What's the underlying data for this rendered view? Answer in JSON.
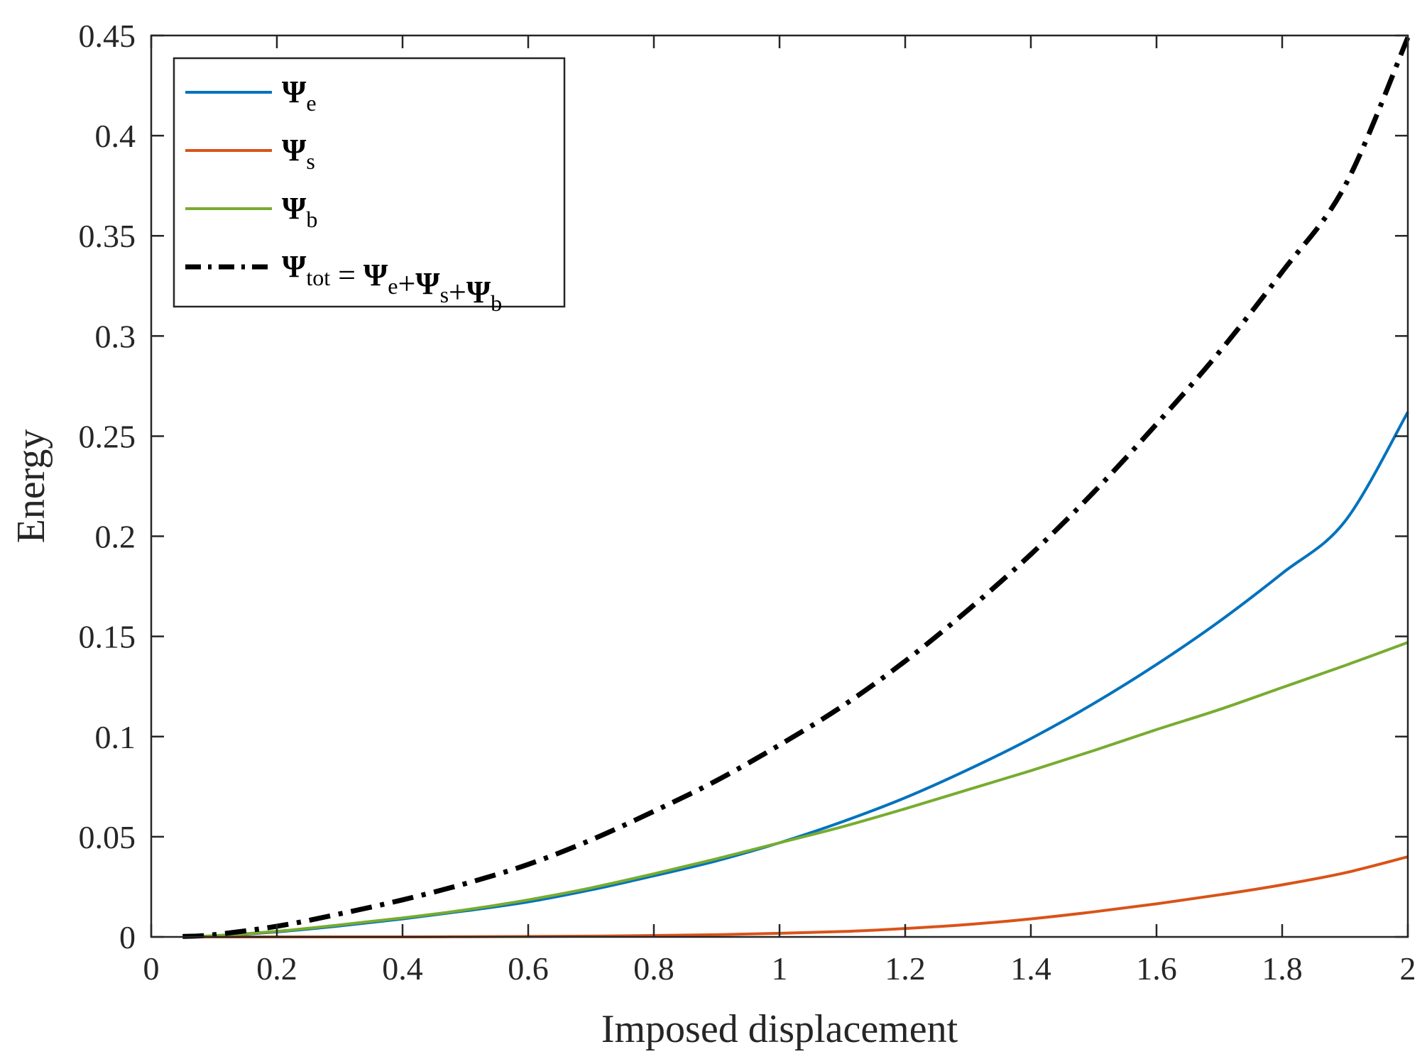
{
  "chart_data": {
    "type": "line",
    "title": "",
    "xlabel": "Imposed displacement",
    "ylabel": "Energy",
    "xlim": [
      0,
      2
    ],
    "ylim": [
      0,
      0.45
    ],
    "xticks": [
      0,
      0.2,
      0.4,
      0.6,
      0.8,
      1,
      1.2,
      1.4,
      1.6,
      1.8,
      2
    ],
    "xtick_labels": [
      "0",
      "0.2",
      "0.4",
      "0.6",
      "0.8",
      "1",
      "1.2",
      "1.4",
      "1.6",
      "1.8",
      "2"
    ],
    "yticks": [
      0,
      0.05,
      0.1,
      0.15,
      0.2,
      0.25,
      0.3,
      0.35,
      0.4,
      0.45
    ],
    "ytick_labels": [
      "0",
      "0.05",
      "0.1",
      "0.15",
      "0.2",
      "0.25",
      "0.3",
      "0.35",
      "0.4",
      "0.45"
    ],
    "grid": false,
    "legend_position": "top-left",
    "x": [
      0.05,
      0.1,
      0.2,
      0.3,
      0.4,
      0.5,
      0.6,
      0.7,
      0.8,
      0.9,
      1.0,
      1.1,
      1.2,
      1.3,
      1.4,
      1.5,
      1.6,
      1.7,
      1.8,
      1.9,
      2.0
    ],
    "series": [
      {
        "name": "Ψe",
        "legend_symbol": "Ψ",
        "legend_subscript": "e",
        "color": "#0072BD",
        "style": "solid",
        "values": [
          0.0001,
          0.0005,
          0.0025,
          0.0055,
          0.009,
          0.013,
          0.0175,
          0.0235,
          0.0305,
          0.038,
          0.047,
          0.0575,
          0.0695,
          0.0835,
          0.099,
          0.1165,
          0.136,
          0.1575,
          0.1815,
          0.2075,
          0.262
        ]
      },
      {
        "name": "Ψs",
        "legend_symbol": "Ψ",
        "legend_subscript": "s",
        "color": "#D95319",
        "style": "solid",
        "values": [
          0,
          0,
          0,
          0,
          0,
          0.0001,
          0.0002,
          0.0004,
          0.0007,
          0.0011,
          0.0018,
          0.0027,
          0.0042,
          0.0062,
          0.009,
          0.0125,
          0.0165,
          0.021,
          0.026,
          0.032,
          0.04
        ]
      },
      {
        "name": "Ψb",
        "legend_symbol": "Ψ",
        "legend_subscript": "b",
        "color": "#77AC30",
        "style": "solid",
        "values": [
          0.0001,
          0.0006,
          0.0028,
          0.006,
          0.0095,
          0.0135,
          0.0185,
          0.0245,
          0.0315,
          0.039,
          0.047,
          0.055,
          0.064,
          0.0735,
          0.083,
          0.093,
          0.1035,
          0.1135,
          0.1245,
          0.1355,
          0.147
        ]
      },
      {
        "name": "Ψtot = Ψe+Ψs+Ψb",
        "legend_parts": [
          {
            "symbol": "Ψ",
            "sub": "tot"
          },
          {
            "text": " = "
          },
          {
            "symbol": "Ψ",
            "sub": "e"
          },
          {
            "text": "+"
          },
          {
            "symbol": "Ψ",
            "sub": "s"
          },
          {
            "text": "+"
          },
          {
            "symbol": "Ψ",
            "sub": "b"
          }
        ],
        "color": "#000000",
        "style": "dashdot",
        "values": [
          0.0002,
          0.0011,
          0.0053,
          0.0115,
          0.0185,
          0.0266,
          0.0362,
          0.0484,
          0.0627,
          0.0781,
          0.0958,
          0.1152,
          0.1377,
          0.1632,
          0.191,
          0.222,
          0.256,
          0.292,
          0.332,
          0.375,
          0.449
        ]
      }
    ]
  }
}
